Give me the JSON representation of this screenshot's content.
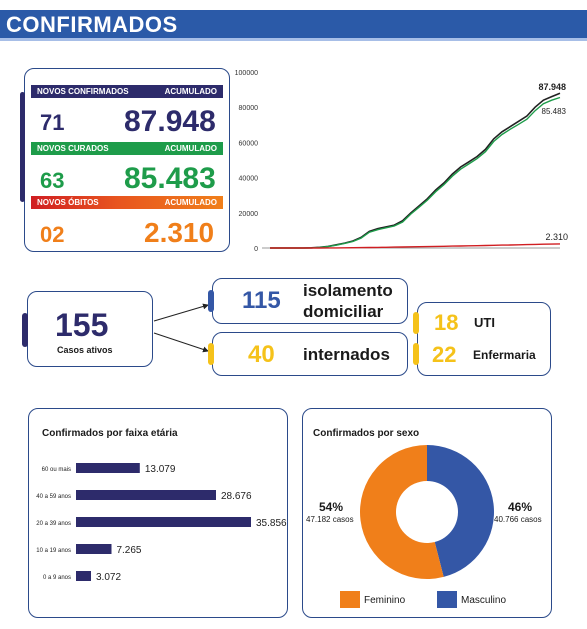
{
  "header": {
    "title": "CONFIRMADOS"
  },
  "summary": {
    "rows": [
      {
        "label": "NOVOS CONFIRMADOS",
        "acc_label": "ACUMULADO",
        "new": "71",
        "acc": "87.948",
        "bar": "#2d2b6b",
        "color": "#2d2b6b"
      },
      {
        "label": "NOVOS CURADOS",
        "acc_label": "ACUMULADO",
        "new": "63",
        "acc": "85.483",
        "bar": "#1e9c4a",
        "color": "#1e9c4a"
      },
      {
        "label": "NOVOS ÓBITOS",
        "acc_label": "ACUMULADO",
        "new": "02",
        "acc": "2.310",
        "bar": "#f07f1a",
        "color": "#f07f1a",
        "bar_left": "#d01e22"
      }
    ]
  },
  "line_chart": {
    "y_ticks": [
      "100000",
      "80000",
      "60000",
      "40000",
      "20000",
      "0"
    ],
    "end_labels": {
      "confirmed": "87.948",
      "recovered": "85.483",
      "deaths": "2.310"
    }
  },
  "chart_data": [
    {
      "type": "line",
      "ylim": [
        0,
        100000
      ],
      "series": [
        {
          "values": [
            0,
            0,
            0,
            0,
            0,
            100,
            400,
            900,
            1800,
            2800,
            4000,
            6000,
            9500,
            11000,
            12000,
            13000,
            15500,
            20000,
            24000,
            28000,
            33000,
            37000,
            42000,
            46000,
            49000,
            52000,
            56000,
            62000,
            66000,
            69000,
            72000,
            75000,
            80000,
            84000,
            86000,
            87948
          ]
        },
        {
          "values": [
            0,
            0,
            0,
            0,
            0,
            80,
            350,
            800,
            1600,
            2600,
            3700,
            5600,
            9000,
            10400,
            11500,
            12500,
            14800,
            19300,
            23200,
            27200,
            32000,
            36000,
            40800,
            44800,
            47800,
            50800,
            54700,
            60500,
            64500,
            67500,
            70300,
            73200,
            78000,
            82000,
            84000,
            85483
          ]
        },
        {
          "values": [
            0,
            0,
            0,
            0,
            0,
            0,
            10,
            30,
            60,
            100,
            150,
            200,
            280,
            350,
            420,
            500,
            580,
            660,
            740,
            820,
            900,
            980,
            1060,
            1150,
            1240,
            1330,
            1420,
            1520,
            1620,
            1720,
            1830,
            1940,
            2050,
            2160,
            2240,
            2310
          ]
        }
      ],
      "colors": [
        "#222222",
        "#1e9c4a",
        "#d01e22"
      ]
    },
    {
      "type": "bar",
      "title": "Confirmados por faixa etária",
      "categories": [
        "60 ou mais",
        "40 a 59 anos",
        "20 a 39 anos",
        "10 a 19 anos",
        "0 a 9 anos"
      ],
      "values": [
        13079,
        28676,
        35856,
        7265,
        3072
      ],
      "value_labels": [
        "13.079",
        "28.676",
        "35.856",
        "7.265",
        "3.072"
      ],
      "color": "#2d2b6b"
    },
    {
      "type": "pie",
      "title": "Confirmados por sexo",
      "slices": [
        {
          "name": "Feminino",
          "pct": 54,
          "pct_label": "54%",
          "cases": "47.182 casos",
          "color": "#f07f1a"
        },
        {
          "name": "Masculino",
          "pct": 46,
          "pct_label": "46%",
          "cases": "40.766 casos",
          "color": "#3457a6"
        }
      ]
    }
  ],
  "active": {
    "count": "155",
    "label": "Casos ativos"
  },
  "isolation": {
    "count": "115",
    "line1": "isolamento",
    "line2": "domiciliar"
  },
  "internados": {
    "count": "40",
    "label": "internados"
  },
  "beds": {
    "uti_count": "18",
    "uti_label": "UTI",
    "enf_count": "22",
    "enf_label": "Enfermaria"
  }
}
